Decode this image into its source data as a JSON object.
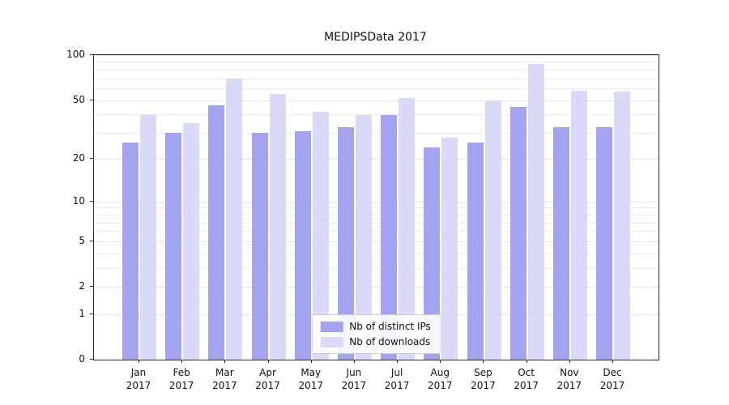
{
  "chart_data": {
    "type": "bar",
    "title": "MEDIPSData 2017",
    "categories": [
      "Jan",
      "Feb",
      "Mar",
      "Apr",
      "May",
      "Jun",
      "Jul",
      "Aug",
      "Sep",
      "Oct",
      "Nov",
      "Dec"
    ],
    "category_year": "2017",
    "series": [
      {
        "name": "Nb of distinct IPs",
        "color": "#a3a3ef",
        "values": [
          26,
          30,
          46,
          30,
          31,
          33,
          40,
          24,
          26,
          45,
          33,
          33
        ]
      },
      {
        "name": "Nb of downloads",
        "color": "#d9d9f8",
        "values": [
          40,
          35,
          70,
          55,
          42,
          40,
          52,
          28,
          49,
          87,
          58,
          57
        ]
      }
    ],
    "yscale": "log1p",
    "ylim": [
      0,
      100
    ],
    "yticks": [
      "0",
      "1",
      "2",
      "5",
      "10",
      "20",
      "50",
      "100"
    ],
    "ytick_values": [
      0,
      1,
      2,
      5,
      10,
      20,
      50,
      100
    ],
    "grid": true,
    "legend_position": "lower-center"
  }
}
